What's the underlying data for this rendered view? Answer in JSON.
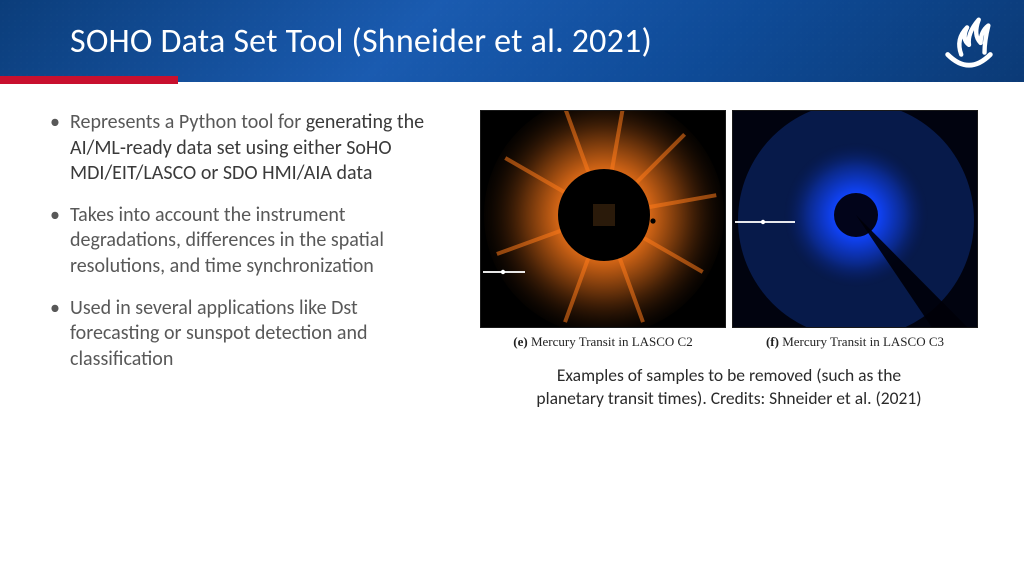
{
  "header": {
    "title": "SOHO Data Set Tool (Shneider et al. 2021)",
    "bg_gradient": [
      "#0b3d7a",
      "#1a5bb0",
      "#0e4a96",
      "#0b3a76"
    ],
    "accent_bar_color": "#c8102e",
    "title_color": "#ffffff",
    "title_fontsize": 34
  },
  "bullets": {
    "text_color": "#585858",
    "fontsize": 20,
    "items": [
      {
        "prefix": "Represents a Python tool for ",
        "bold": "generating the AI/ML-ready data set using either SoHO MDI/EIT/LASCO or SDO HMI/AIA data"
      },
      {
        "prefix": "Takes into account the instrument degradations, differences in the spatial resolutions, and time synchronization",
        "bold": ""
      },
      {
        "prefix": "Used in several applications like Dst forecasting or sunspot detection and classification",
        "bold": ""
      }
    ]
  },
  "figures": {
    "panels": [
      {
        "label_bold": "(e)",
        "label_rest": " Mercury Transit in LASCO C2",
        "type": "coronagraph",
        "glow_color": "#ff7a1a",
        "glow_inner": "#ffcf5a",
        "disk_color": "#000000",
        "occulter_square": true,
        "occulter_color": "#2a1a0a",
        "rays": true,
        "streak_left": true
      },
      {
        "label_bold": "(f)",
        "label_rest": " Mercury Transit in LASCO C3",
        "type": "coronagraph",
        "glow_color": "#1044ff",
        "glow_inner": "#5a9bff",
        "disk_color": "#02041a",
        "occulter_square": false,
        "occulter_color": "#000000",
        "rays": false,
        "pylon": true,
        "streak_left": true
      }
    ],
    "caption_line1": "Examples of samples to be removed (such as the",
    "caption_line2": "planetary transit times). Credits: Shneider et al. (2021)",
    "caption_fontsize": 17.5,
    "caption_color": "#2a2a2a"
  },
  "logo": {
    "stroke": "#ffffff",
    "name": "flame-bowl-logo"
  }
}
